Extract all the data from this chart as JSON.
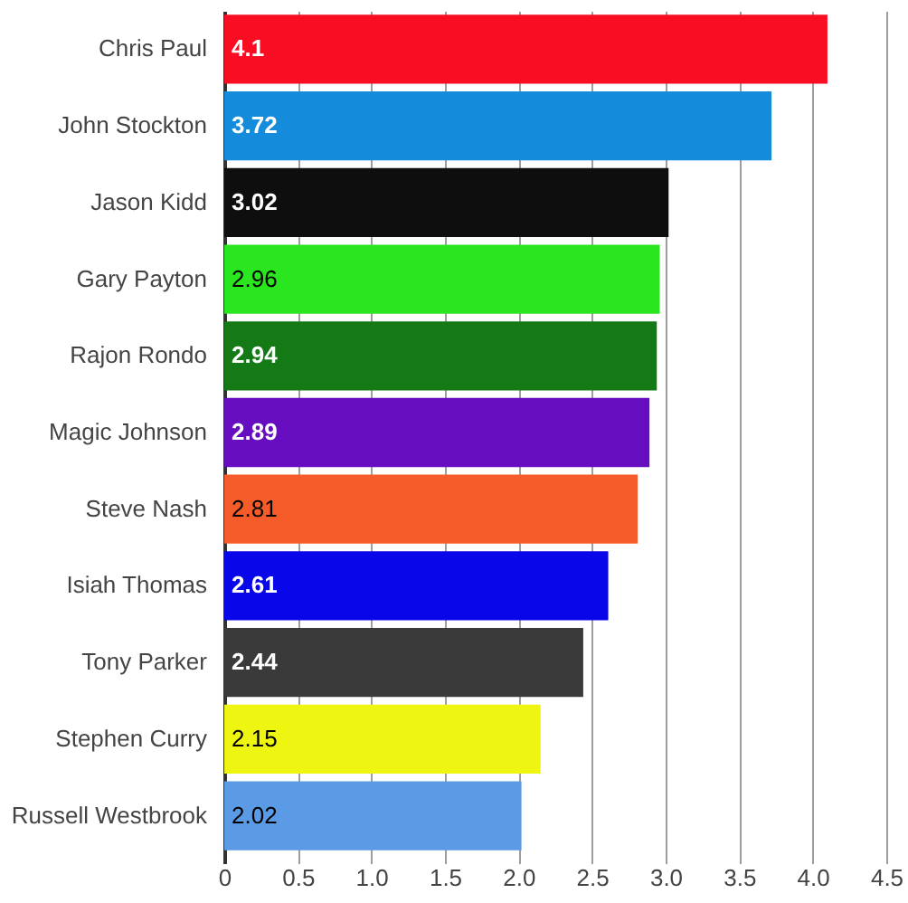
{
  "chart_data": {
    "type": "bar",
    "orientation": "horizontal",
    "categories": [
      "Chris Paul",
      "John Stockton",
      "Jason Kidd",
      "Gary Payton",
      "Rajon Rondo",
      "Magic Johnson",
      "Steve Nash",
      "Isiah Thomas",
      "Tony Parker",
      "Stephen Curry",
      "Russell Westbrook"
    ],
    "values": [
      4.1,
      3.72,
      3.02,
      2.96,
      2.94,
      2.89,
      2.81,
      2.61,
      2.44,
      2.15,
      2.02
    ],
    "colors": [
      "#f80d22",
      "#158bdc",
      "#0e0e0e",
      "#2ae61e",
      "#137a16",
      "#650dbf",
      "#f55c2a",
      "#0a06ea",
      "#3a3a3a",
      "#eef510",
      "#5b9be6"
    ],
    "xlim": [
      0,
      4.5
    ],
    "xticks": [
      0,
      0.5,
      {
        "value": 1,
        "label": "1.0"
      },
      1.5,
      {
        "value": 2,
        "label": "2.0"
      },
      2.5,
      {
        "value": 3,
        "label": "3.0"
      },
      3.5,
      {
        "value": 4,
        "label": "4.0"
      },
      4.5
    ],
    "grid": "x",
    "data_labels": true
  }
}
